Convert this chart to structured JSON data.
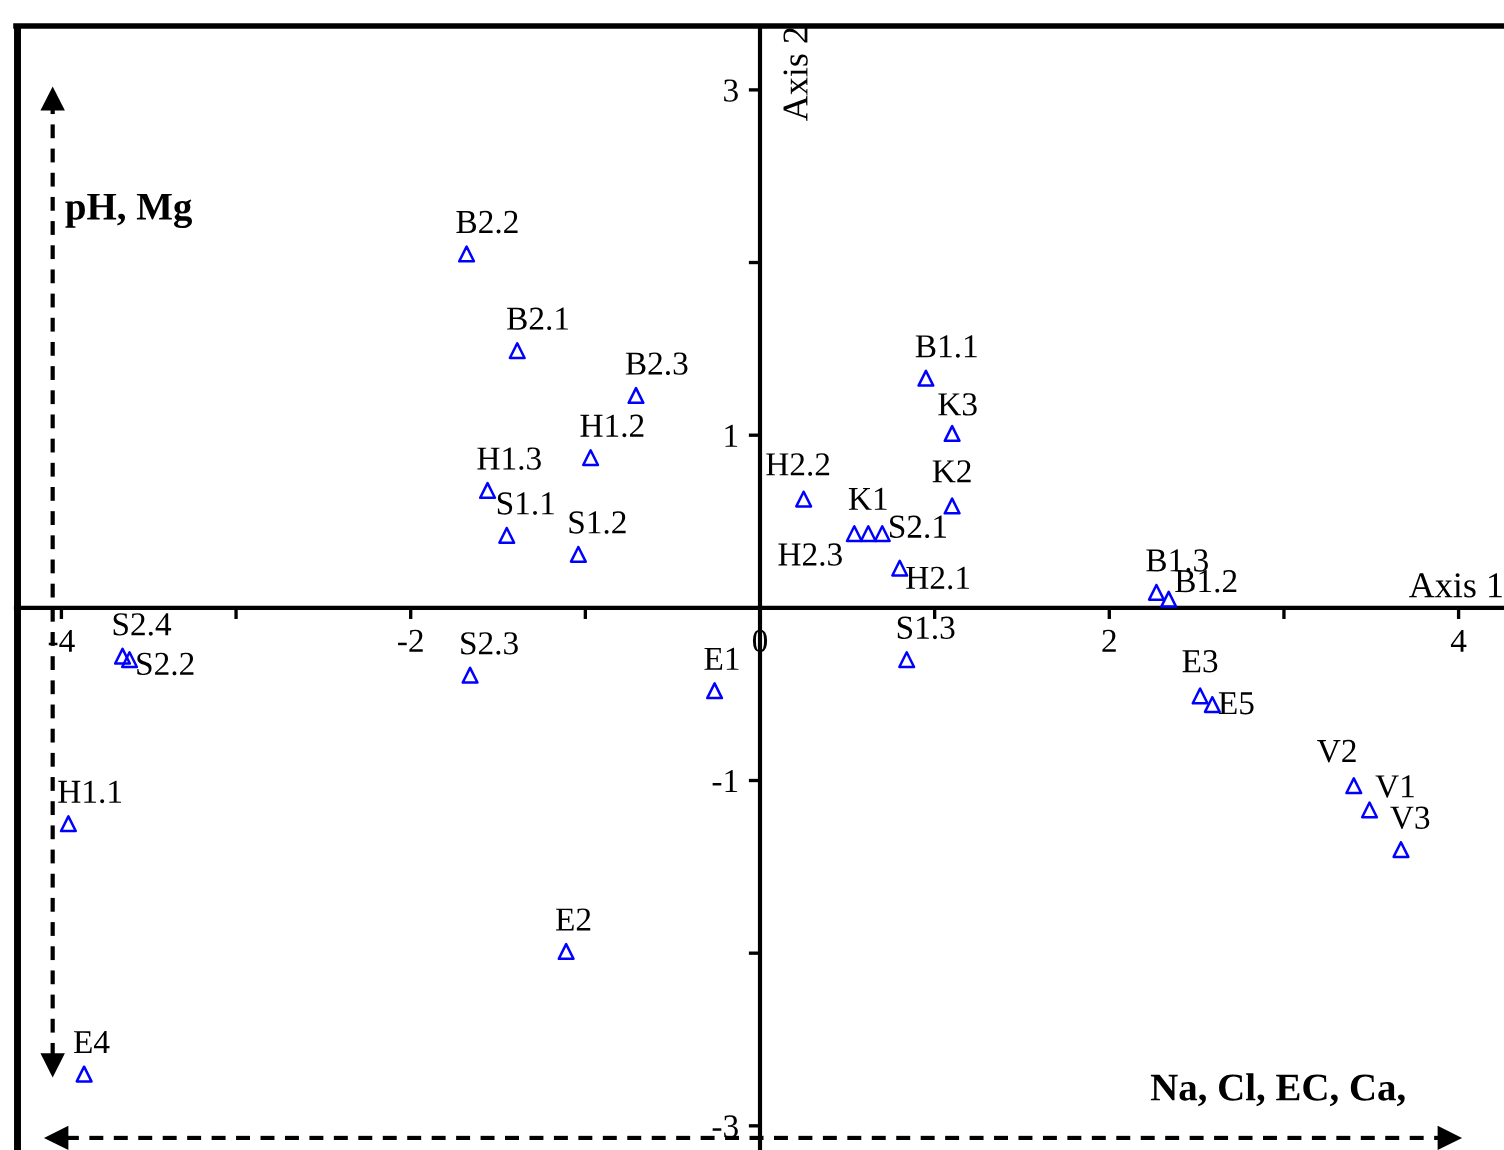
{
  "chart_data": {
    "type": "scatter",
    "xlabel": "Axis 1",
    "ylabel": "Axis 2",
    "marker": "triangle",
    "grid": false,
    "legend": false,
    "xlim": [
      -4.26,
      4.26
    ],
    "ylim": [
      -3.14,
      3.37
    ],
    "xticks": [
      -4,
      {
        "value": -3,
        "label": null
      },
      -2,
      {
        "value": -1,
        "label": null
      },
      0,
      {
        "value": 1,
        "label": null
      },
      2,
      {
        "value": 3,
        "label": null
      },
      4
    ],
    "yticks": [
      3,
      {
        "value": 2,
        "label": null
      },
      1,
      -1,
      {
        "value": -2,
        "label": null
      },
      -3
    ],
    "series": [
      {
        "color": "#0000ff",
        "x": [
          -1.68,
          -1.39,
          -0.71,
          -0.97,
          -1.56,
          -1.45,
          -1.04,
          0.95,
          1.1,
          1.1,
          0.25,
          0.54,
          0.62,
          0.7,
          0.8,
          2.27,
          2.34,
          0.84,
          2.52,
          2.59,
          3.4,
          3.49,
          3.67,
          -3.65,
          -3.61,
          -1.66,
          -0.26,
          -3.96,
          -1.11,
          -3.87
        ],
        "values": [
          2.05,
          1.49,
          1.23,
          0.87,
          0.68,
          0.42,
          0.31,
          1.33,
          1.01,
          0.59,
          0.63,
          0.43,
          0.43,
          0.43,
          0.23,
          0.09,
          0.05,
          -0.3,
          -0.51,
          -0.56,
          -1.03,
          -1.17,
          -1.4,
          -0.28,
          -0.3,
          -0.39,
          -0.48,
          -1.25,
          -1.99,
          -2.7
        ]
      }
    ],
    "annotations": [
      {
        "text": "B2.2",
        "x": -1.68,
        "y": 2.05
      },
      {
        "text": "B2.1",
        "x": -1.39,
        "y": 1.49
      },
      {
        "text": "B2.3",
        "x": -0.71,
        "y": 1.23
      },
      {
        "text": "H1.2",
        "x": -0.97,
        "y": 0.87
      },
      {
        "text": "H1.3",
        "x": -1.56,
        "y": 0.68
      },
      {
        "text": "S1.1",
        "x": -1.45,
        "y": 0.42
      },
      {
        "text": "S1.2",
        "x": -1.04,
        "y": 0.31
      },
      {
        "text": "B1.1",
        "x": 0.95,
        "y": 1.33
      },
      {
        "text": "K3",
        "x": 1.1,
        "y": 1.01
      },
      {
        "text": "K2",
        "x": 1.1,
        "y": 0.59
      },
      {
        "text": "H2.2",
        "x": 0.25,
        "y": 0.63
      },
      {
        "text": "H2.3",
        "x": 0.54,
        "y": 0.43
      },
      {
        "text": "K1",
        "x": 0.62,
        "y": 0.43
      },
      {
        "text": "S2.1",
        "x": 0.7,
        "y": 0.43
      },
      {
        "text": "H2.1",
        "x": 0.8,
        "y": 0.23
      },
      {
        "text": "B1.3",
        "x": 2.27,
        "y": 0.09
      },
      {
        "text": "B1.2",
        "x": 2.34,
        "y": 0.05
      },
      {
        "text": "S1.3",
        "x": 0.84,
        "y": -0.3
      },
      {
        "text": "E3",
        "x": 2.52,
        "y": -0.51
      },
      {
        "text": "E5",
        "x": 2.59,
        "y": -0.56
      },
      {
        "text": "V2",
        "x": 3.4,
        "y": -1.03
      },
      {
        "text": "V1",
        "x": 3.49,
        "y": -1.17
      },
      {
        "text": "V3",
        "x": 3.67,
        "y": -1.4
      },
      {
        "text": "S2.4",
        "x": -3.65,
        "y": -0.28
      },
      {
        "text": "S2.2",
        "x": -3.61,
        "y": -0.3
      },
      {
        "text": "S2.3",
        "x": -1.66,
        "y": -0.39
      },
      {
        "text": "E1",
        "x": -0.26,
        "y": -0.48
      },
      {
        "text": "H1.1",
        "x": -3.96,
        "y": -1.25
      },
      {
        "text": "E2",
        "x": -1.11,
        "y": -1.99
      },
      {
        "text": "E4",
        "x": -3.87,
        "y": -2.7
      },
      "pH, Mg",
      "Na, Cl, EC, Ca,"
    ]
  }
}
